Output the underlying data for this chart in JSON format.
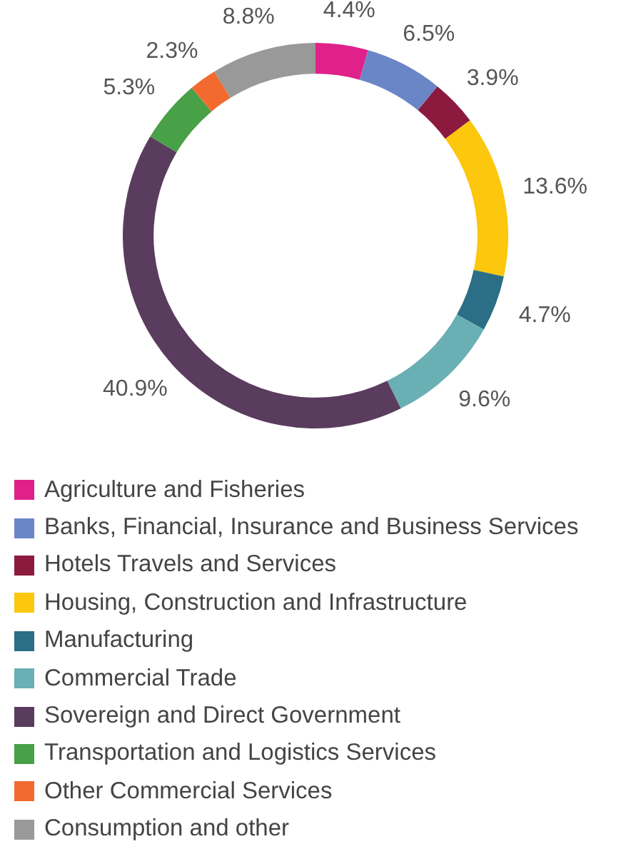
{
  "chart_data": {
    "type": "donut",
    "categories": [
      "Agriculture and Fisheries",
      "Banks, Financial, Insurance and Business Services",
      "Hotels Travels and Services",
      "Housing, Construction and Infrastructure",
      "Manufacturing",
      "Commercial Trade",
      "Sovereign and Direct Government",
      "Transportation and Logistics Services",
      "Other Commercial Services",
      "Consumption and other"
    ],
    "values": [
      4.4,
      6.5,
      3.9,
      13.6,
      4.7,
      9.6,
      40.9,
      5.3,
      2.3,
      8.8
    ],
    "value_labels": [
      "4.4%",
      "6.5%",
      "3.9%",
      "13.6%",
      "4.7%",
      "9.6%",
      "40.9%",
      "5.3%",
      "2.3%",
      "8.8%"
    ],
    "colors": [
      "#e0218a",
      "#6a86c6",
      "#8c1a3f",
      "#fcc70c",
      "#2b6e85",
      "#6aafb3",
      "#5a3c5e",
      "#48a047",
      "#f26a30",
      "#999999"
    ],
    "legend": "bottom"
  }
}
